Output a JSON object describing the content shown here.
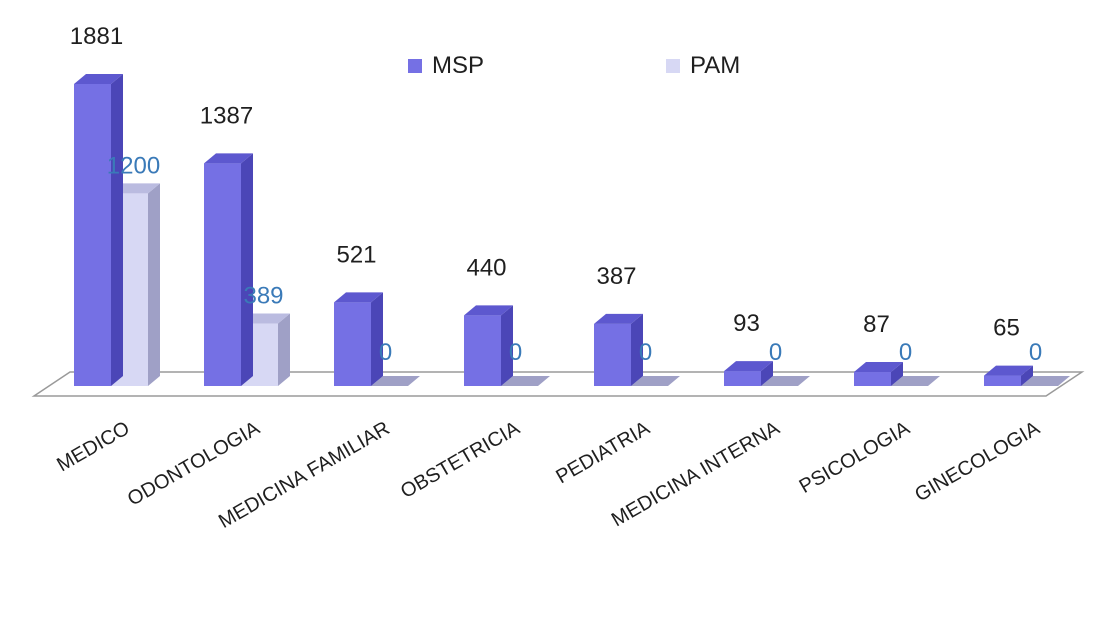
{
  "colors": {
    "msp": "#7570e4",
    "msp_side": "#4b46b7",
    "msp_top": "#5d58cf",
    "pam": "#d7d8f4",
    "pam_side": "#9fa0c6",
    "pam_top": "#babbe0",
    "pam_label": "#3a7ab8",
    "floor": "#ffffff",
    "floor_stroke": "#9a9a9a"
  },
  "legend": [
    {
      "label": "MSP",
      "key": "msp"
    },
    {
      "label": "PAM",
      "key": "pam"
    }
  ],
  "chart_data": {
    "type": "bar",
    "categories": [
      "MEDICO",
      "ODONTOLOGIA",
      "MEDICINA FAMILIAR",
      "OBSTETRICIA",
      "PEDIATRIA",
      "MEDICINA INTERNA",
      "PSICOLOGIA",
      "GINECOLOGIA"
    ],
    "series": [
      {
        "name": "MSP",
        "values": [
          1881,
          1387,
          521,
          440,
          387,
          93,
          87,
          65
        ]
      },
      {
        "name": "PAM",
        "values": [
          1200,
          389,
          0,
          0,
          0,
          0,
          0,
          0
        ]
      }
    ],
    "title": "",
    "xlabel": "",
    "ylabel": "",
    "ylim": [
      0,
      1881
    ],
    "grid": false,
    "legend_position": "top-right"
  }
}
